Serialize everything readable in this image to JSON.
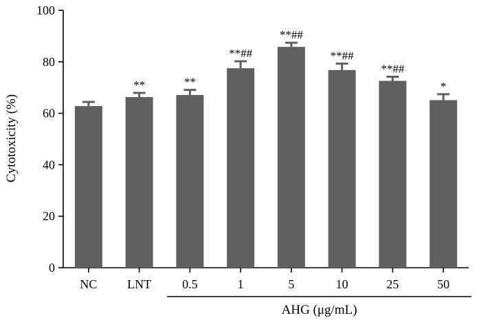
{
  "chart_data": {
    "type": "bar",
    "categories": [
      "NC",
      "LNT",
      "0.5",
      "1",
      "5",
      "10",
      "25",
      "50"
    ],
    "values": [
      62.8,
      66.3,
      67.1,
      77.5,
      85.8,
      76.8,
      72.6,
      65.1
    ],
    "errors": [
      1.6,
      1.6,
      2.0,
      2.7,
      1.6,
      2.5,
      1.6,
      2.3
    ],
    "annotations": [
      "",
      "**",
      "**",
      "**##",
      "**##",
      "**##",
      "**##",
      "*"
    ],
    "ylabel": "Cytotoxicity (%)",
    "group_label": "AHG (μg/mL)",
    "ylim": [
      0,
      100
    ],
    "yticks": [
      0,
      20,
      40,
      60,
      80,
      100
    ],
    "grid": false,
    "bar_color": "#606060"
  }
}
